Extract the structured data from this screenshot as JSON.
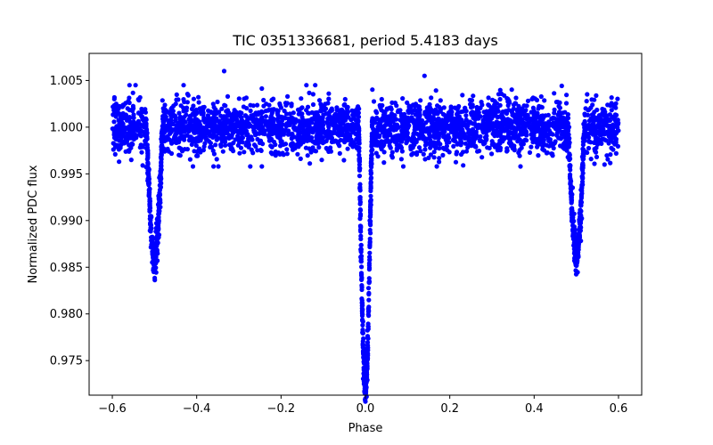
{
  "chart_data": {
    "type": "scatter",
    "title": "TIC 0351336681, period 5.4183 days",
    "xlabel": "Phase",
    "ylabel": "Normalized PDC flux",
    "xlim": [
      -0.655,
      0.655
    ],
    "ylim": [
      0.9713,
      1.0079
    ],
    "x_ticks": [
      -0.6,
      -0.4,
      -0.2,
      0.0,
      0.2,
      0.4,
      0.6
    ],
    "x_tick_labels": [
      "−0.6",
      "−0.4",
      "−0.2",
      "0.0",
      "0.2",
      "0.4",
      "0.6"
    ],
    "y_ticks": [
      0.975,
      0.98,
      0.985,
      0.99,
      0.995,
      1.0,
      1.005
    ],
    "y_tick_labels": [
      "0.975",
      "0.980",
      "0.985",
      "0.990",
      "0.995",
      "1.000",
      "1.005"
    ],
    "marker_color": "#0000ff",
    "series": [
      {
        "name": "phase-folded light curve",
        "baseline_flux": 1.0,
        "scatter_sigma": 0.0014,
        "phase_range": [
          -0.6,
          0.6
        ],
        "n_points": 3200,
        "dips": [
          {
            "name": "primary eclipse",
            "phase_center": 0.0,
            "min_flux": 0.9723,
            "half_width": 0.016
          },
          {
            "name": "secondary eclipse",
            "phase_center": -0.5,
            "min_flux": 0.986,
            "half_width": 0.02
          },
          {
            "name": "secondary eclipse",
            "phase_center": 0.5,
            "min_flux": 0.986,
            "half_width": 0.02
          }
        ],
        "outliers": [
          {
            "x": -0.335,
            "y": 1.006
          },
          {
            "x": 0.14,
            "y": 1.0055
          },
          {
            "x": -0.36,
            "y": 0.9958
          }
        ]
      }
    ]
  }
}
